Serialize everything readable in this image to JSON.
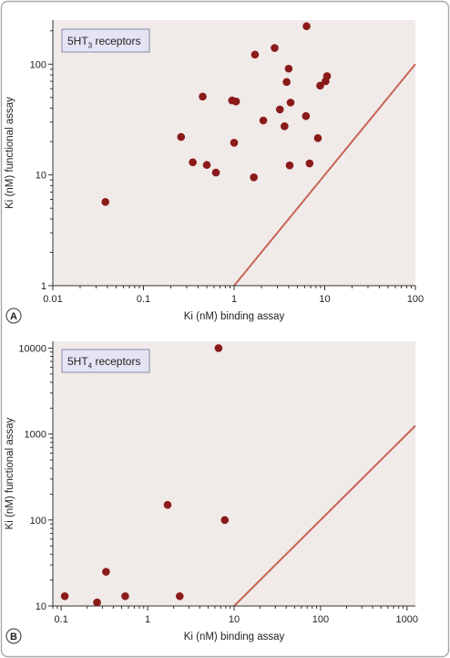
{
  "colors": {
    "frame_border": "#a9a9a9",
    "plot_background": "#f0ebe8",
    "point_fill": "#8b1a1a",
    "identity_line": "#c86455",
    "legend_background": "#e4e4f4",
    "legend_border": "#8a8aa8"
  },
  "chart_data": [
    {
      "type": "scatter",
      "panel": "A",
      "legend": {
        "base": "5HT",
        "sub": "3",
        "suffix": " receptors",
        "placement": "top-left"
      },
      "xlabel": "Ki (nM) binding assay",
      "ylabel": "Ki (nM) functional assay",
      "xscale": "log",
      "yscale": "log",
      "xlim": [
        0.01,
        100
      ],
      "ylim": [
        1,
        250
      ],
      "xticks": [
        0.01,
        0.1,
        1,
        10,
        100
      ],
      "xtick_labels": [
        "0.01",
        "0.1",
        "1",
        "10",
        "100"
      ],
      "yticks": [
        1,
        10,
        100
      ],
      "ytick_labels": [
        "1",
        "10",
        "100"
      ],
      "grid": false,
      "identity_line": true,
      "points": [
        {
          "x": 0.038,
          "y": 5.7
        },
        {
          "x": 0.26,
          "y": 22
        },
        {
          "x": 0.35,
          "y": 13
        },
        {
          "x": 0.45,
          "y": 51
        },
        {
          "x": 0.5,
          "y": 12.3
        },
        {
          "x": 0.63,
          "y": 10.5
        },
        {
          "x": 0.95,
          "y": 47
        },
        {
          "x": 1.05,
          "y": 46
        },
        {
          "x": 1.0,
          "y": 19.5
        },
        {
          "x": 1.65,
          "y": 9.5
        },
        {
          "x": 1.7,
          "y": 122
        },
        {
          "x": 2.1,
          "y": 31
        },
        {
          "x": 2.8,
          "y": 140
        },
        {
          "x": 3.2,
          "y": 39
        },
        {
          "x": 3.6,
          "y": 27.5
        },
        {
          "x": 3.8,
          "y": 69
        },
        {
          "x": 4.0,
          "y": 91
        },
        {
          "x": 4.2,
          "y": 45
        },
        {
          "x": 4.1,
          "y": 12.2
        },
        {
          "x": 6.2,
          "y": 34
        },
        {
          "x": 6.3,
          "y": 220
        },
        {
          "x": 6.8,
          "y": 12.7
        },
        {
          "x": 8.4,
          "y": 21.5
        },
        {
          "x": 8.9,
          "y": 64
        },
        {
          "x": 10.2,
          "y": 70
        },
        {
          "x": 10.6,
          "y": 78
        }
      ]
    },
    {
      "type": "scatter",
      "panel": "B",
      "legend": {
        "base": "5HT",
        "sub": "4",
        "suffix": " receptors",
        "placement": "top-left"
      },
      "xlabel": "Ki (nM) binding assay",
      "ylabel": "Ki (nM) functional assay",
      "xscale": "log",
      "yscale": "log",
      "xlim": [
        0.08,
        1250
      ],
      "ylim": [
        10,
        12000
      ],
      "xticks": [
        0.1,
        1,
        10,
        100,
        1000
      ],
      "xtick_labels": [
        "0.1",
        "1",
        "10",
        "100",
        "1000"
      ],
      "yticks": [
        10,
        100,
        1000,
        10000
      ],
      "ytick_labels": [
        "10",
        "100",
        "1000",
        "10000"
      ],
      "grid": false,
      "identity_line": true,
      "points": [
        {
          "x": 0.11,
          "y": 13
        },
        {
          "x": 0.26,
          "y": 11
        },
        {
          "x": 0.33,
          "y": 25
        },
        {
          "x": 0.55,
          "y": 13
        },
        {
          "x": 1.7,
          "y": 150
        },
        {
          "x": 2.35,
          "y": 13
        },
        {
          "x": 6.6,
          "y": 10000
        },
        {
          "x": 7.8,
          "y": 100
        }
      ]
    }
  ]
}
